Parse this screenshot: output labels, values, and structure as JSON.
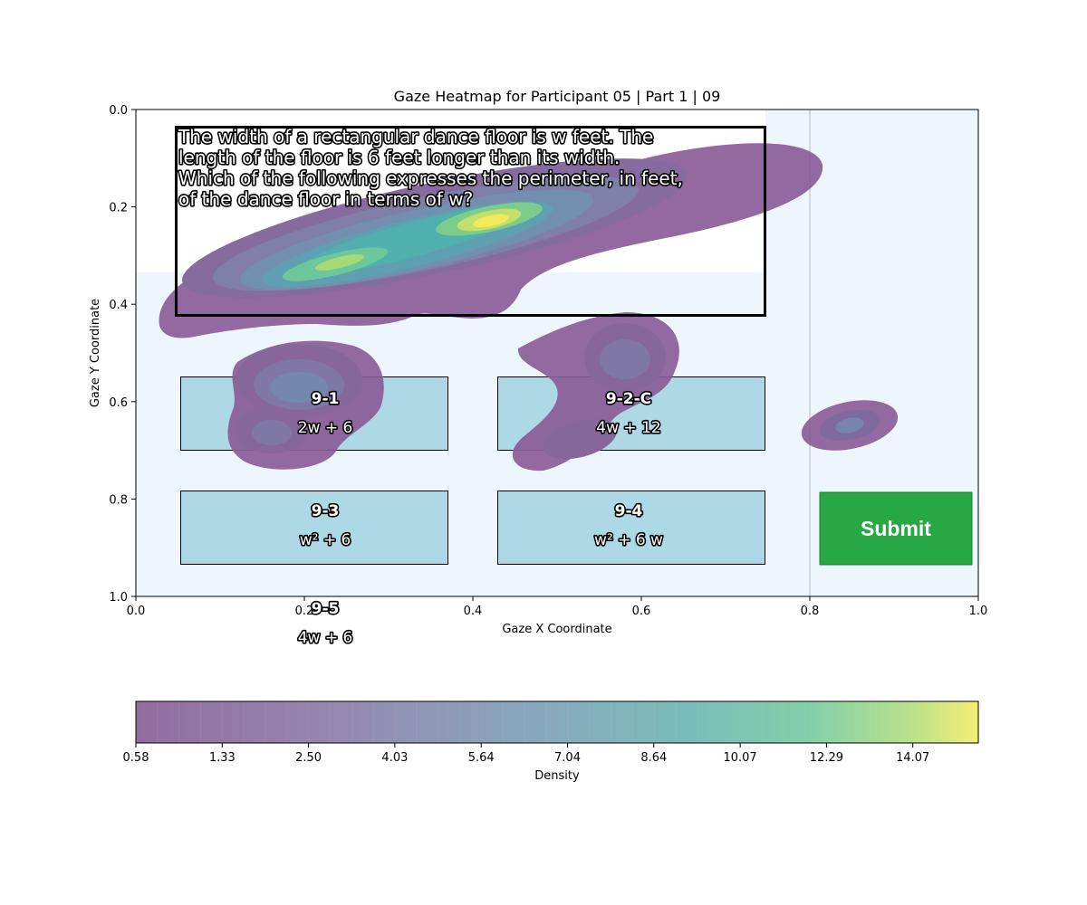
{
  "chart_data": {
    "type": "heatmap",
    "title": "Gaze Heatmap for Participant 05 | Part 1 | 09",
    "xlabel": "Gaze X Coordinate",
    "ylabel": "Gaze Y Coordinate",
    "xlim": [
      0.0,
      1.0
    ],
    "ylim": [
      1.0,
      0.0
    ],
    "xticks": [
      "0.0",
      "0.2",
      "0.4",
      "0.6",
      "0.8",
      "1.0"
    ],
    "yticks": [
      "0.0",
      "0.2",
      "0.4",
      "0.6",
      "0.8",
      "1.0"
    ],
    "colorbar": {
      "label": "Density",
      "ticks": [
        "0.58",
        "1.33",
        "2.50",
        "4.03",
        "5.64",
        "7.04",
        "8.64",
        "10.07",
        "12.29",
        "14.07"
      ],
      "colormap": "viridis",
      "min": 0.58,
      "max": 15.6
    },
    "density_peaks": [
      {
        "x": 0.42,
        "y": 0.23,
        "density": 15.6
      },
      {
        "x": 0.24,
        "y": 0.31,
        "density": 12.3
      },
      {
        "x": 0.2,
        "y": 0.58,
        "density": 4.5
      },
      {
        "x": 0.585,
        "y": 0.51,
        "density": 3.2
      },
      {
        "x": 0.53,
        "y": 0.67,
        "density": 2.3
      },
      {
        "x": 0.85,
        "y": 0.655,
        "density": 2.5
      }
    ]
  },
  "question": {
    "lines": [
      "The width of a rectangular dance floor is w feet. The",
      "length of the floor is 6 feet longer than its width.",
      "Which of the following expresses the perimeter, in feet,",
      "of the dance floor in terms of w?"
    ]
  },
  "options": [
    {
      "id": "9-1",
      "text": "2w + 6"
    },
    {
      "id": "9-2-C",
      "text": "4w + 12"
    },
    {
      "id": "9-3",
      "text": "w² + 6"
    },
    {
      "id": "9-4",
      "text": "w² + 6 w"
    },
    {
      "id": "9-5",
      "text": "4w + 6"
    }
  ],
  "submit": {
    "label": "Submit"
  },
  "colors": {
    "background": "#eef6fd",
    "option_fill": "#add8e6",
    "submit_fill": "#28a745"
  }
}
